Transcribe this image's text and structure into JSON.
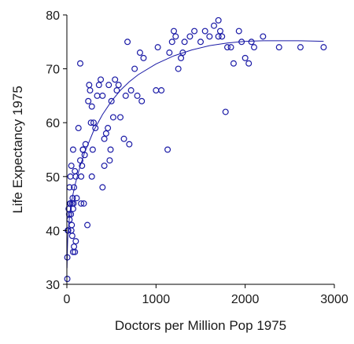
{
  "chart_data": {
    "type": "scatter",
    "title": "",
    "xlabel": "Doctors per Million Pop 1975",
    "ylabel": "Life Expectancy 1975",
    "xlim": [
      0,
      3000
    ],
    "ylim": [
      30,
      80
    ],
    "xticks": [
      0,
      1000,
      2000,
      3000
    ],
    "yticks": [
      30,
      40,
      50,
      60,
      70,
      80
    ],
    "grid": false,
    "legend": "none",
    "point_color": "#1a1aa6",
    "fit_color": "#1a1aa6",
    "series": [
      {
        "values": [
          [
            5,
            31
          ],
          [
            5,
            35
          ],
          [
            10,
            40
          ],
          [
            15,
            40
          ],
          [
            20,
            44
          ],
          [
            25,
            43
          ],
          [
            30,
            42
          ],
          [
            35,
            45
          ],
          [
            40,
            45
          ],
          [
            45,
            43
          ],
          [
            50,
            40
          ],
          [
            55,
            41
          ],
          [
            60,
            39
          ],
          [
            65,
            46
          ],
          [
            70,
            44
          ],
          [
            75,
            45
          ],
          [
            80,
            48
          ],
          [
            30,
            48
          ],
          [
            40,
            50
          ],
          [
            50,
            52
          ],
          [
            60,
            45
          ],
          [
            70,
            36
          ],
          [
            80,
            37
          ],
          [
            90,
            36
          ],
          [
            100,
            38
          ],
          [
            110,
            46
          ],
          [
            70,
            55
          ],
          [
            90,
            51
          ],
          [
            100,
            50
          ],
          [
            130,
            59
          ],
          [
            160,
            50
          ],
          [
            150,
            53
          ],
          [
            170,
            52
          ],
          [
            180,
            55
          ],
          [
            160,
            45
          ],
          [
            190,
            45
          ],
          [
            200,
            54
          ],
          [
            210,
            56
          ],
          [
            230,
            41
          ],
          [
            240,
            64
          ],
          [
            250,
            67
          ],
          [
            260,
            66
          ],
          [
            270,
            60
          ],
          [
            280,
            63
          ],
          [
            300,
            60
          ],
          [
            290,
            55
          ],
          [
            320,
            59
          ],
          [
            340,
            65
          ],
          [
            360,
            67
          ],
          [
            380,
            68
          ],
          [
            400,
            65
          ],
          [
            420,
            57
          ],
          [
            440,
            58
          ],
          [
            460,
            59
          ],
          [
            470,
            67
          ],
          [
            480,
            53
          ],
          [
            490,
            55
          ],
          [
            500,
            64
          ],
          [
            520,
            61
          ],
          [
            540,
            68
          ],
          [
            560,
            66
          ],
          [
            580,
            67
          ],
          [
            600,
            61
          ],
          [
            640,
            57
          ],
          [
            660,
            65
          ],
          [
            680,
            75
          ],
          [
            700,
            56
          ],
          [
            720,
            66
          ],
          [
            760,
            70
          ],
          [
            790,
            65
          ],
          [
            820,
            73
          ],
          [
            840,
            64
          ],
          [
            860,
            72
          ],
          [
            400,
            48
          ],
          [
            420,
            52
          ],
          [
            150,
            71
          ],
          [
            180,
            55
          ],
          [
            280,
            50
          ],
          [
            1000,
            66
          ],
          [
            1020,
            74
          ],
          [
            1060,
            66
          ],
          [
            1130,
            55
          ],
          [
            1150,
            73
          ],
          [
            1180,
            75
          ],
          [
            1200,
            77
          ],
          [
            1220,
            76
          ],
          [
            1250,
            70
          ],
          [
            1280,
            72
          ],
          [
            1300,
            73
          ],
          [
            1320,
            75
          ],
          [
            1380,
            76
          ],
          [
            1430,
            77
          ],
          [
            1500,
            75
          ],
          [
            1550,
            77
          ],
          [
            1600,
            76
          ],
          [
            1650,
            78
          ],
          [
            1700,
            79
          ],
          [
            1720,
            77
          ],
          [
            1700,
            76
          ],
          [
            1740,
            76
          ],
          [
            1780,
            62
          ],
          [
            1800,
            74
          ],
          [
            1840,
            74
          ],
          [
            1870,
            71
          ],
          [
            1930,
            77
          ],
          [
            1960,
            75
          ],
          [
            2000,
            72
          ],
          [
            2040,
            71
          ],
          [
            2070,
            75
          ],
          [
            2100,
            74
          ],
          [
            2200,
            76
          ],
          [
            2380,
            74
          ],
          [
            2620,
            74
          ],
          [
            2880,
            74
          ]
        ]
      }
    ],
    "fit_curve": [
      [
        2,
        33
      ],
      [
        5,
        36
      ],
      [
        10,
        38.5
      ],
      [
        20,
        41
      ],
      [
        40,
        44
      ],
      [
        70,
        46.8
      ],
      [
        100,
        49
      ],
      [
        150,
        52
      ],
      [
        200,
        54.5
      ],
      [
        300,
        58.5
      ],
      [
        400,
        61.5
      ],
      [
        500,
        64
      ],
      [
        600,
        66
      ],
      [
        700,
        67.6
      ],
      [
        800,
        68.9
      ],
      [
        1000,
        70.9
      ],
      [
        1200,
        72.4
      ],
      [
        1400,
        73.5
      ],
      [
        1600,
        74.3
      ],
      [
        1800,
        74.8
      ],
      [
        2000,
        75.1
      ],
      [
        2200,
        75.2
      ],
      [
        2400,
        75.2
      ],
      [
        2600,
        75.2
      ],
      [
        2880,
        75.1
      ]
    ]
  }
}
